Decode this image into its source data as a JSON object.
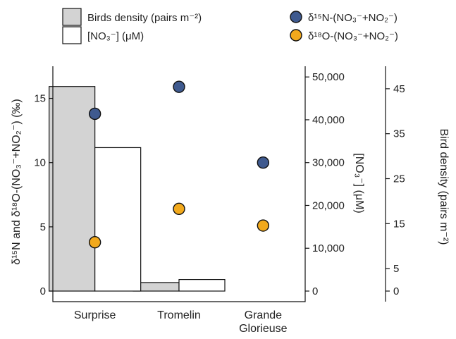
{
  "chart_data": {
    "type": "bar",
    "categories": [
      [
        "Surprise"
      ],
      [
        "Tromelin"
      ],
      [
        "Grande",
        "Glorieuse"
      ]
    ],
    "series": [
      {
        "name": "Birds density (pairs m⁻²)",
        "kind": "bar",
        "axis": "right2",
        "color": "#d3d3d3",
        "values": [
          45.5,
          1.9,
          0.0
        ]
      },
      {
        "name": "[NO₃⁻] (μM)",
        "kind": "bar",
        "axis": "right1",
        "color": "#ffffff",
        "values": [
          33500,
          2700,
          0
        ]
      },
      {
        "name": "δ¹⁵N-(NO₃⁻+NO₂⁻)",
        "kind": "scatter",
        "axis": "left",
        "color": "#3f5a8f",
        "values": [
          13.8,
          15.9,
          10.0
        ],
        "errors": [
          0,
          0.45,
          0
        ]
      },
      {
        "name": "δ¹⁸O-(NO₃⁻+NO₂⁻)",
        "kind": "scatter",
        "axis": "left",
        "color": "#f2a91c",
        "values": [
          3.8,
          6.4,
          5.1
        ],
        "errors": [
          0,
          0.45,
          0
        ]
      }
    ],
    "axes": {
      "left": {
        "label": "δ¹⁵N and δ¹⁸O-(NO₃⁻+NO₂⁻) (‰)",
        "ticks": [
          0,
          5,
          10,
          15
        ],
        "ylim": [
          0,
          17.5
        ]
      },
      "right1": {
        "label": "[NO₃⁻] (μM)",
        "ticks": [
          0,
          10000,
          20000,
          30000,
          40000,
          50000
        ],
        "tick_labels": [
          "0",
          "10,000",
          "20,000",
          "30,000",
          "40,000",
          "50,000"
        ],
        "ylim": [
          0,
          52500
        ]
      },
      "right2": {
        "label": "Bird density (pairs m⁻²)",
        "ticks": [
          0,
          5,
          15,
          25,
          35,
          45
        ],
        "ylim": [
          0,
          50
        ]
      }
    },
    "legend": {
      "placement": "top",
      "items": [
        {
          "label": "Birds density (pairs m⁻²)",
          "marker": "rect",
          "color": "#d3d3d3"
        },
        {
          "label": "[NO₃⁻] (μM)",
          "marker": "rect",
          "color": "#ffffff"
        },
        {
          "label": "δ¹⁵N-(NO₃⁻+NO₂⁻)",
          "marker": "circle",
          "color": "#3f5a8f"
        },
        {
          "label": "δ¹⁸O-(NO₃⁻+NO₂⁻)",
          "marker": "circle",
          "color": "#f2a91c"
        }
      ]
    }
  }
}
